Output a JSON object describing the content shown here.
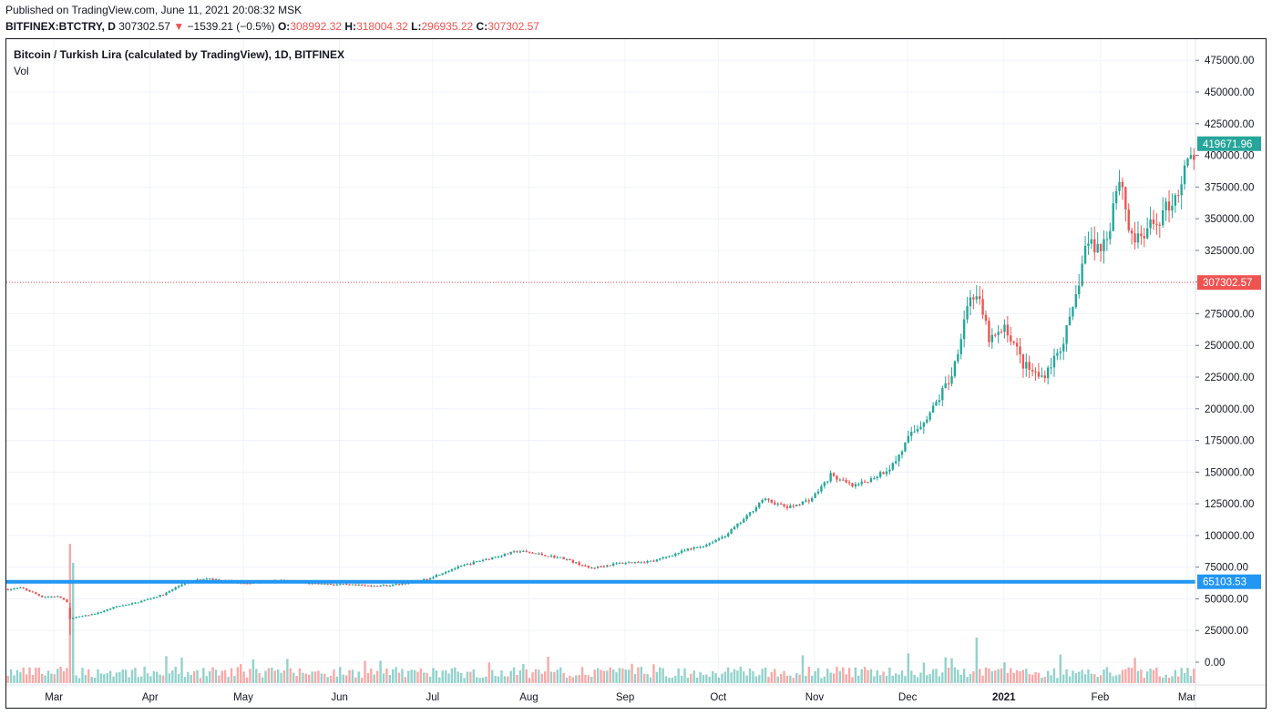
{
  "header": {
    "published": "Published on TradingView.com, June 11, 2021 20:08:32 MSK",
    "symbol": "BITFINEX:BTCTRY, D",
    "last": "307302.57",
    "change": "−1539.21 (−0.5%)",
    "open_label": "O:",
    "open": "308992.32",
    "high_label": "H:",
    "high": "318004.32",
    "low_label": "L:",
    "low": "296935.22",
    "close_label": "C:",
    "close": "307302.57"
  },
  "legend": {
    "title": "Bitcoin / Turkish Lira (calculated by TradingView), 1D, BITFINEX",
    "volume": "Vol"
  },
  "colors": {
    "up": "#26a69a",
    "down": "#ef5350",
    "level_line": "#2196f3",
    "grid": "#f0f3fa",
    "text": "#131722"
  },
  "chart_data": {
    "type": "candlestick",
    "title": "Bitcoin / Turkish Lira (calculated by TradingView), 1D, BITFINEX",
    "x_labels": [
      "Mar",
      "Apr",
      "May",
      "Jun",
      "Jul",
      "Aug",
      "Sep",
      "Oct",
      "Nov",
      "Dec",
      "2021",
      "Feb",
      "Mar"
    ],
    "x_label_index": [
      6,
      37,
      67,
      98,
      128,
      159,
      190,
      220,
      251,
      281,
      312,
      343,
      371
    ],
    "y_ticks": [
      "0.00",
      "25000.00",
      "50000.00",
      "75000.00",
      "100000.00",
      "125000.00",
      "150000.00",
      "175000.00",
      "200000.00",
      "225000.00",
      "250000.00",
      "275000.00",
      "300000.00",
      "325000.00",
      "350000.00",
      "375000.00",
      "400000.00",
      "425000.00",
      "450000.00",
      "475000.00"
    ],
    "ylim": [
      -25000,
      490000
    ],
    "days": 383,
    "price_labels": [
      {
        "value": 419671.96,
        "text": "419671.96",
        "color": "#26a69a"
      },
      {
        "value": 307302.57,
        "text": "307302.57",
        "color": "#ef5350"
      },
      {
        "value": 65103.53,
        "text": "65103.53",
        "color": "#2196f3"
      }
    ],
    "horizontal_line": 65103.53,
    "last_price_line": 307302.57,
    "anchors": [
      [
        0,
        59000
      ],
      [
        5,
        60000
      ],
      [
        12,
        53000
      ],
      [
        18,
        53000
      ],
      [
        20,
        50000
      ],
      [
        21,
        48000
      ],
      [
        22,
        36000
      ],
      [
        26,
        37000
      ],
      [
        32,
        40000
      ],
      [
        38,
        45000
      ],
      [
        45,
        48000
      ],
      [
        55,
        55000
      ],
      [
        62,
        64000
      ],
      [
        70,
        68000
      ],
      [
        76,
        66000
      ],
      [
        84,
        64000
      ],
      [
        95,
        66000
      ],
      [
        105,
        64000
      ],
      [
        115,
        63000
      ],
      [
        125,
        62000
      ],
      [
        134,
        62000
      ],
      [
        140,
        64000
      ],
      [
        146,
        66000
      ],
      [
        156,
        75000
      ],
      [
        166,
        82000
      ],
      [
        180,
        90000
      ],
      [
        196,
        84000
      ],
      [
        205,
        76000
      ],
      [
        215,
        80000
      ],
      [
        228,
        82000
      ],
      [
        238,
        90000
      ],
      [
        246,
        95000
      ],
      [
        253,
        103000
      ],
      [
        260,
        117000
      ],
      [
        266,
        132000
      ],
      [
        275,
        125000
      ],
      [
        283,
        132000
      ],
      [
        290,
        151000
      ],
      [
        298,
        142000
      ],
      [
        304,
        148000
      ],
      [
        312,
        160000
      ],
      [
        318,
        183000
      ],
      [
        326,
        205000
      ],
      [
        333,
        235000
      ],
      [
        338,
        290000
      ],
      [
        341,
        300000
      ],
      [
        346,
        260000
      ],
      [
        352,
        270000
      ],
      [
        358,
        240000
      ],
      [
        364,
        230000
      ],
      [
        370,
        250000
      ],
      [
        375,
        280000
      ],
      [
        380,
        340000
      ],
      [
        385,
        335000
      ],
      [
        388,
        350000
      ],
      [
        390,
        380000
      ],
      [
        392,
        395000
      ],
      [
        395,
        350000
      ],
      [
        398,
        340000
      ],
      [
        402,
        350000
      ],
      [
        406,
        360000
      ],
      [
        412,
        380000
      ],
      [
        416,
        405000
      ],
      [
        418,
        410000
      ]
    ],
    "spike_bar": {
      "index": 22,
      "open": 44000,
      "close": 35000,
      "high": 48000,
      "low": 22000
    },
    "volume_spikes": [
      {
        "index": 22,
        "value": 110000
      },
      {
        "index": 23,
        "value": 95000
      },
      {
        "index": 280,
        "value": 22000
      },
      {
        "index": 341,
        "value": 36000
      },
      {
        "index": 397,
        "value": 20000
      }
    ]
  }
}
